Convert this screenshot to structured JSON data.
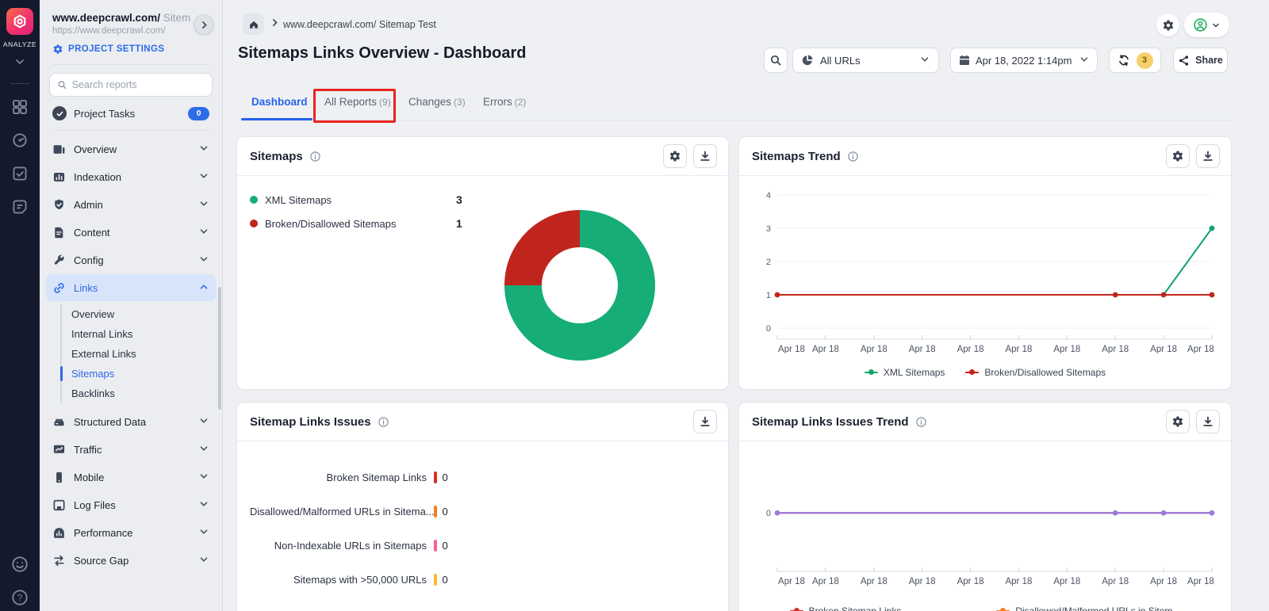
{
  "rail": {
    "brand": "ANALYZE"
  },
  "sidebar": {
    "project_name": "www.deepcrawl.com/",
    "project_name_suffix": " Sitem",
    "project_url": "https://www.deepcrawl.com/",
    "settings_label": "PROJECT SETTINGS",
    "search_placeholder": "Search reports",
    "tasks_label": "Project Tasks",
    "tasks_badge": "0",
    "items": [
      {
        "label": "Overview"
      },
      {
        "label": "Indexation"
      },
      {
        "label": "Admin"
      },
      {
        "label": "Content"
      },
      {
        "label": "Config"
      },
      {
        "label": "Links"
      },
      {
        "label": "Structured Data"
      },
      {
        "label": "Traffic"
      },
      {
        "label": "Mobile"
      },
      {
        "label": "Log Files"
      },
      {
        "label": "Performance"
      },
      {
        "label": "Source Gap"
      }
    ],
    "links_children": [
      {
        "label": "Overview"
      },
      {
        "label": "Internal Links"
      },
      {
        "label": "External Links"
      },
      {
        "label": "Sitemaps"
      },
      {
        "label": "Backlinks"
      }
    ]
  },
  "header": {
    "breadcrumb": "www.deepcrawl.com/ Sitemap Test",
    "title": "Sitemaps Links Overview - Dashboard",
    "toolbar": {
      "url_filter": "All URLs",
      "date": "Apr 18, 2022 1:14pm",
      "refresh_count": "3",
      "share_label": "Share"
    }
  },
  "tabs": [
    {
      "label": "Dashboard",
      "count": ""
    },
    {
      "label": "All Reports",
      "count": "(9)"
    },
    {
      "label": "Changes",
      "count": "(3)"
    },
    {
      "label": "Errors",
      "count": "(2)"
    }
  ],
  "cards": {
    "sitemaps": {
      "title": "Sitemaps",
      "legend": [
        {
          "label": "XML Sitemaps",
          "value": "3"
        },
        {
          "label": "Broken/Disallowed Sitemaps",
          "value": "1"
        }
      ]
    },
    "sitemaps_trend": {
      "title": "Sitemaps Trend"
    },
    "issues": {
      "title": "Sitemap Links Issues",
      "rows": [
        {
          "label": "Broken Sitemap Links",
          "value": "0",
          "color": "#d63222"
        },
        {
          "label": "Disallowed/Malformed URLs in Sitema...",
          "value": "0",
          "color": "#f57d20"
        },
        {
          "label": "Non-Indexable URLs in Sitemaps",
          "value": "0",
          "color": "#fa5f96"
        },
        {
          "label": "Sitemaps with >50,000 URLs",
          "value": "0",
          "color": "#fcb92c"
        }
      ]
    },
    "issues_trend": {
      "title": "Sitemap Links Issues Trend"
    }
  },
  "chart_data": [
    {
      "type": "pie",
      "donut": true,
      "title": "Sitemaps",
      "labels": [
        "XML Sitemaps",
        "Broken/Disallowed Sitemaps"
      ],
      "values": [
        3,
        1
      ],
      "colors": [
        "#16ad77",
        "#c0251d"
      ]
    },
    {
      "type": "line",
      "title": "Sitemaps Trend",
      "x": [
        "Apr 18",
        "Apr 18",
        "Apr 18",
        "Apr 18",
        "Apr 18",
        "Apr 18",
        "Apr 18",
        "Apr 18",
        "Apr 18",
        "Apr 18"
      ],
      "ylim": [
        0,
        4
      ],
      "yticks": [
        0,
        1,
        2,
        3,
        4
      ],
      "grid": true,
      "legend_position": "bottom",
      "series": [
        {
          "name": "XML Sitemaps",
          "color": "#12a56b",
          "values": [
            1,
            1,
            1,
            1,
            1,
            1,
            1,
            1,
            1,
            3
          ],
          "dot_indices": [
            9
          ]
        },
        {
          "name": "Broken/Disallowed Sitemaps",
          "color": "#c2251c",
          "values": [
            1,
            1,
            1,
            1,
            1,
            1,
            1,
            1,
            1,
            1
          ],
          "dot_indices": [
            0,
            7,
            8,
            9
          ]
        }
      ]
    },
    {
      "type": "line",
      "title": "Sitemap Links Issues Trend",
      "x": [
        "Apr 18",
        "Apr 18",
        "Apr 18",
        "Apr 18",
        "Apr 18",
        "Apr 18",
        "Apr 18",
        "Apr 18",
        "Apr 18",
        "Apr 18"
      ],
      "ylim": [
        -1.2,
        1.5
      ],
      "yticks": [
        0
      ],
      "grid": false,
      "legend_position": "bottom",
      "series": [
        {
          "name": "Broken Sitemap Links",
          "color": "#d63222",
          "values": [
            0,
            0,
            0,
            0,
            0,
            0,
            0,
            0,
            0,
            0
          ],
          "dot_indices": []
        },
        {
          "name": "Disallowed/Malformed URLs in Sitem...",
          "color": "#f57d20",
          "values": [
            0,
            0,
            0,
            0,
            0,
            0,
            0,
            0,
            0,
            0
          ],
          "dot_indices": []
        }
      ],
      "rendered_line_color": "#9b7be0",
      "rendered_dot_indices": [
        0,
        7,
        8,
        9
      ]
    }
  ],
  "colors": {
    "accent_blue": "#2e6be6",
    "annotation_red": "#e8251f",
    "badge_yellow": "#f6d06a",
    "green": "#16ad77",
    "red": "#c0251d",
    "purple": "#9b7be0"
  }
}
